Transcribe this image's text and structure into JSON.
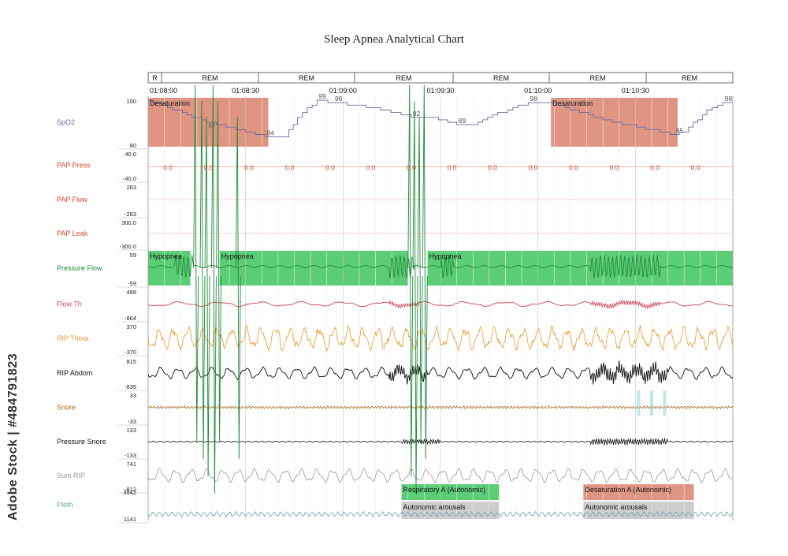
{
  "page_title": "Sleep Apnea Analytical Chart",
  "watermark": "Adobe Stock | #484791823",
  "chart_data": {
    "type": "line",
    "title": "Sleep Apnea Analytical Chart",
    "stage_row": [
      "R",
      "REM",
      "REM",
      "REM",
      "REM",
      "REM",
      "REM"
    ],
    "time_ticks": [
      "01:08:00",
      "01:08:30",
      "01:09:00",
      "01:09:30",
      "01:10:00",
      "01:10:30"
    ],
    "x_range_seconds": [
      0,
      180
    ],
    "channels": [
      {
        "name": "SpO2",
        "max": "100",
        "min": "80",
        "color": "#6a6aa0"
      },
      {
        "name": "PAP Press",
        "max": "40.0",
        "min": "-40.0",
        "color": "#d24a2a"
      },
      {
        "name": "PAP Flow",
        "max": "263",
        "min": "-263",
        "color": "#d24a2a"
      },
      {
        "name": "PAP Leak",
        "max": "300.0",
        "min": "-300.0",
        "color": "#d24a2a"
      },
      {
        "name": "Pressure Flow",
        "max": "59",
        "min": "-59",
        "color": "#1f8a3a"
      },
      {
        "name": "Flow Th",
        "max": "498",
        "min": "-864",
        "color": "#d24a5a"
      },
      {
        "name": "RIP Thora",
        "max": "370",
        "min": "-370",
        "color": "#e89a2e"
      },
      {
        "name": "RIP Abdom",
        "max": "815",
        "min": "-835",
        "color": "#111111"
      },
      {
        "name": "Snore",
        "max": "33",
        "min": "-33",
        "color": "#b26418"
      },
      {
        "name": "Pressure Snore",
        "max": "133",
        "min": "-133",
        "color": "#111111"
      },
      {
        "name": "Sum RIP",
        "max": "741",
        "min": "-812",
        "color": "#9a9a9a"
      },
      {
        "name": "Pleth",
        "max": "3942",
        "min": "1141",
        "color": "#6aa0b0"
      }
    ],
    "spo2_labels": [
      {
        "t": 18,
        "value": "87"
      },
      {
        "t": 36,
        "value": "84"
      },
      {
        "t": 52,
        "value": "99"
      },
      {
        "t": 57,
        "value": "98"
      },
      {
        "t": 81,
        "value": "92"
      },
      {
        "t": 95,
        "value": "89"
      },
      {
        "t": 117,
        "value": "98"
      },
      {
        "t": 162,
        "value": "85"
      },
      {
        "t": 177,
        "value": "98"
      }
    ],
    "pap_press_values": [
      "0.0",
      "0.0",
      "0.0",
      "0.0",
      "0.0",
      "0.0",
      "0.0",
      "0.0",
      "0.0",
      "0.0",
      "0.0",
      "0.0",
      "0.0",
      "0.0"
    ],
    "events": [
      {
        "label": "Desaturation",
        "channel": "SpO2",
        "t_start": 0,
        "t_end": 37,
        "color": "#d9826c"
      },
      {
        "label": "Desaturation",
        "channel": "SpO2",
        "t_start": 124,
        "t_end": 163,
        "color": "#d9826c"
      },
      {
        "label": "Hypopnea",
        "channel": "Pressure Flow",
        "t_start": 0,
        "t_end": 13,
        "color": "#3ec45e"
      },
      {
        "label": "Hypopnea",
        "channel": "Pressure Flow",
        "t_start": 22,
        "t_end": 80,
        "color": "#3ec45e"
      },
      {
        "label": "Hypopnea",
        "channel": "Pressure Flow",
        "t_start": 86,
        "t_end": 180,
        "color": "#3ec45e"
      },
      {
        "label": "Respiratory A (Autonomic)",
        "channel": "Pleth",
        "t_start": 78,
        "t_end": 108,
        "color": "#3ec45e"
      },
      {
        "label": "Autonomic arousals",
        "channel": "Pleth",
        "t_start": 78,
        "t_end": 108,
        "color": "#c8c8c8"
      },
      {
        "label": "Desaturation A (Autonomic)",
        "channel": "Pleth",
        "t_start": 134,
        "t_end": 168,
        "color": "#d9826c"
      },
      {
        "label": "Autonomic arousals",
        "channel": "Pleth",
        "t_start": 134,
        "t_end": 168,
        "color": "#c8c8c8"
      }
    ]
  }
}
